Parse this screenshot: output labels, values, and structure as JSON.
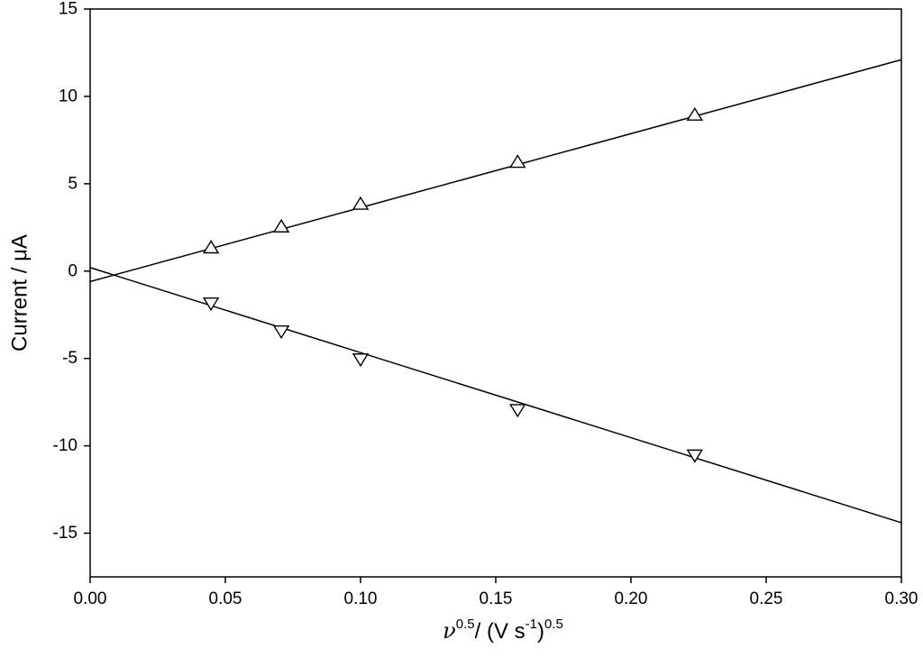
{
  "chart_data": {
    "type": "scatter",
    "title": "",
    "xlabel": {
      "symbol": "ν",
      "exp1": "0.5",
      "mid": "/ (V s",
      "exp2": "-1",
      "close": ")",
      "exp3": "0.5"
    },
    "ylabel": "Current / μA",
    "xlim": [
      0.0,
      0.3
    ],
    "ylim": [
      -17.5,
      15
    ],
    "xticks": [
      "0.00",
      "0.05",
      "0.10",
      "0.15",
      "0.20",
      "0.25",
      "0.30"
    ],
    "yticks": [
      "15",
      "10",
      "5",
      "0",
      "-5",
      "-10",
      "-15"
    ],
    "grid": false,
    "legend": "none",
    "series": [
      {
        "marker": "triangle-up",
        "x": [
          0.0447,
          0.0707,
          0.1,
          0.1581,
          0.2236
        ],
        "y": [
          1.3,
          2.5,
          3.8,
          6.2,
          8.9
        ],
        "fit": {
          "x": [
            0.0,
            0.3
          ],
          "y": [
            -0.6,
            12.1
          ]
        }
      },
      {
        "marker": "triangle-down",
        "x": [
          0.0447,
          0.0707,
          0.1,
          0.1581,
          0.2236
        ],
        "y": [
          -1.8,
          -3.4,
          -5.0,
          -7.9,
          -10.5
        ],
        "fit": {
          "x": [
            0.0,
            0.3
          ],
          "y": [
            0.2,
            -14.4
          ]
        }
      }
    ]
  }
}
